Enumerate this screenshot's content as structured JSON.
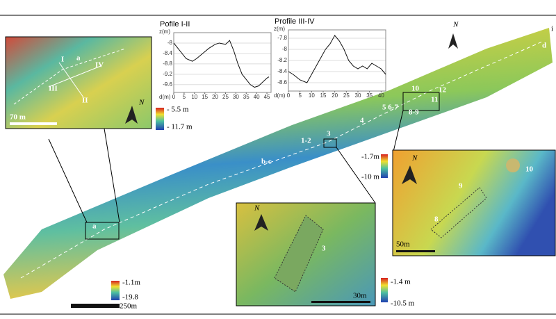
{
  "map": {
    "site_labels": [
      "a",
      "b-c",
      "1-2",
      "3",
      "4",
      "5 6-7",
      "8-9",
      "10",
      "11",
      "12",
      "d",
      "i"
    ],
    "main_legend": {
      "max": "-1.1m",
      "min": "-19.8"
    },
    "main_scale": "250m",
    "legend_3": {
      "max": "-1.7m",
      "min": "-10 m"
    },
    "inset_a": {
      "labels": [
        "a",
        "I",
        "II",
        "III",
        "IV"
      ],
      "scale": "70 m",
      "legend_max": "- 5.5 m",
      "legend_min": "- 11.7 m"
    },
    "inset_3": {
      "label": "3",
      "scale": "30m",
      "legend_max": "-1.4 m",
      "legend_min": "-10.5 m"
    },
    "inset_10": {
      "labels": [
        "10",
        "9",
        "8"
      ],
      "scale": "50m"
    },
    "north": "N"
  },
  "profiles": [
    {
      "title": "Pofile I-II",
      "ylabel": "z(m)",
      "xlabel": "d(m)",
      "yticks": [
        -8,
        -8.4,
        -8.8,
        -9.2,
        -9.6
      ],
      "ylim": [
        -9.9,
        -7.6
      ],
      "xticks": [
        0,
        5,
        10,
        15,
        20,
        25,
        30,
        35,
        40,
        45
      ],
      "xlim": [
        0,
        47
      ],
      "x": [
        0,
        3,
        6,
        9,
        11,
        14,
        17,
        20,
        22,
        25,
        27,
        29,
        31,
        33,
        35,
        37,
        39,
        41,
        43,
        45,
        46
      ],
      "values": [
        -8.0,
        -8.3,
        -8.6,
        -8.7,
        -8.6,
        -8.4,
        -8.2,
        -8.05,
        -8.0,
        -8.05,
        -7.9,
        -8.3,
        -8.8,
        -9.2,
        -9.4,
        -9.6,
        -9.7,
        -9.65,
        -9.5,
        -9.35,
        -9.3
      ]
    },
    {
      "title": "Profile III-IV",
      "ylabel": "z(m)",
      "xlabel": "d(m)",
      "yticks": [
        -7.8,
        -8,
        -8.2,
        -8.4,
        -8.6
      ],
      "ylim": [
        -8.75,
        -7.65
      ],
      "xticks": [
        0,
        5,
        10,
        15,
        20,
        25,
        30,
        35,
        40
      ],
      "xlim": [
        0,
        42
      ],
      "x": [
        0,
        2,
        5,
        8,
        10,
        12,
        14,
        16,
        18,
        20,
        22,
        24,
        26,
        28,
        30,
        32,
        34,
        36,
        38,
        40,
        42
      ],
      "values": [
        -8.4,
        -8.45,
        -8.55,
        -8.6,
        -8.45,
        -8.3,
        -8.15,
        -8.0,
        -7.9,
        -7.75,
        -7.85,
        -8.0,
        -8.2,
        -8.3,
        -8.35,
        -8.3,
        -8.35,
        -8.25,
        -8.3,
        -8.35,
        -8.45
      ]
    }
  ]
}
